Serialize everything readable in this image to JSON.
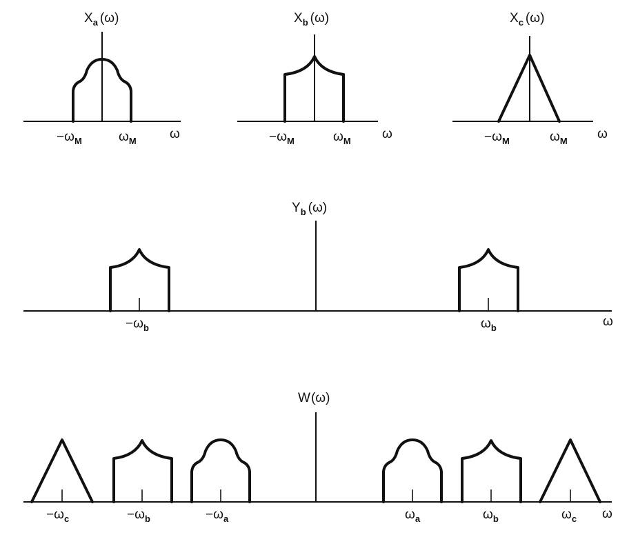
{
  "top_spectra": [
    {
      "func": "X",
      "sub": "a",
      "arg": "(ω)",
      "neg_label": "−ω",
      "neg_sub": "M",
      "pos_label": "ω",
      "pos_sub": "M",
      "axis_label": "ω",
      "shape": "rounded-dome"
    },
    {
      "func": "X",
      "sub": "b",
      "arg": "(ω)",
      "neg_label": "−ω",
      "neg_sub": "M",
      "pos_label": "ω",
      "pos_sub": "M",
      "axis_label": "ω",
      "shape": "concave-peak"
    },
    {
      "func": "X",
      "sub": "c",
      "arg": "(ω)",
      "neg_label": "−ω",
      "neg_sub": "M",
      "pos_label": "ω",
      "pos_sub": "M",
      "axis_label": "ω",
      "shape": "triangle"
    }
  ],
  "y_spectrum": {
    "func": "Y",
    "sub": "b",
    "arg": "(ω)",
    "axis_label": "ω",
    "ticks": [
      {
        "label": "−ω",
        "sub": "b"
      },
      {
        "label": "ω",
        "sub": "b"
      }
    ]
  },
  "w_spectrum": {
    "func": "W",
    "arg": "(ω)",
    "axis_label": "ω",
    "ticks": [
      {
        "label": "−ω",
        "sub": "c"
      },
      {
        "label": "−ω",
        "sub": "b"
      },
      {
        "label": "−ω",
        "sub": "a"
      },
      {
        "label": "ω",
        "sub": "a"
      },
      {
        "label": "ω",
        "sub": "b"
      },
      {
        "label": "ω",
        "sub": "c"
      }
    ]
  }
}
